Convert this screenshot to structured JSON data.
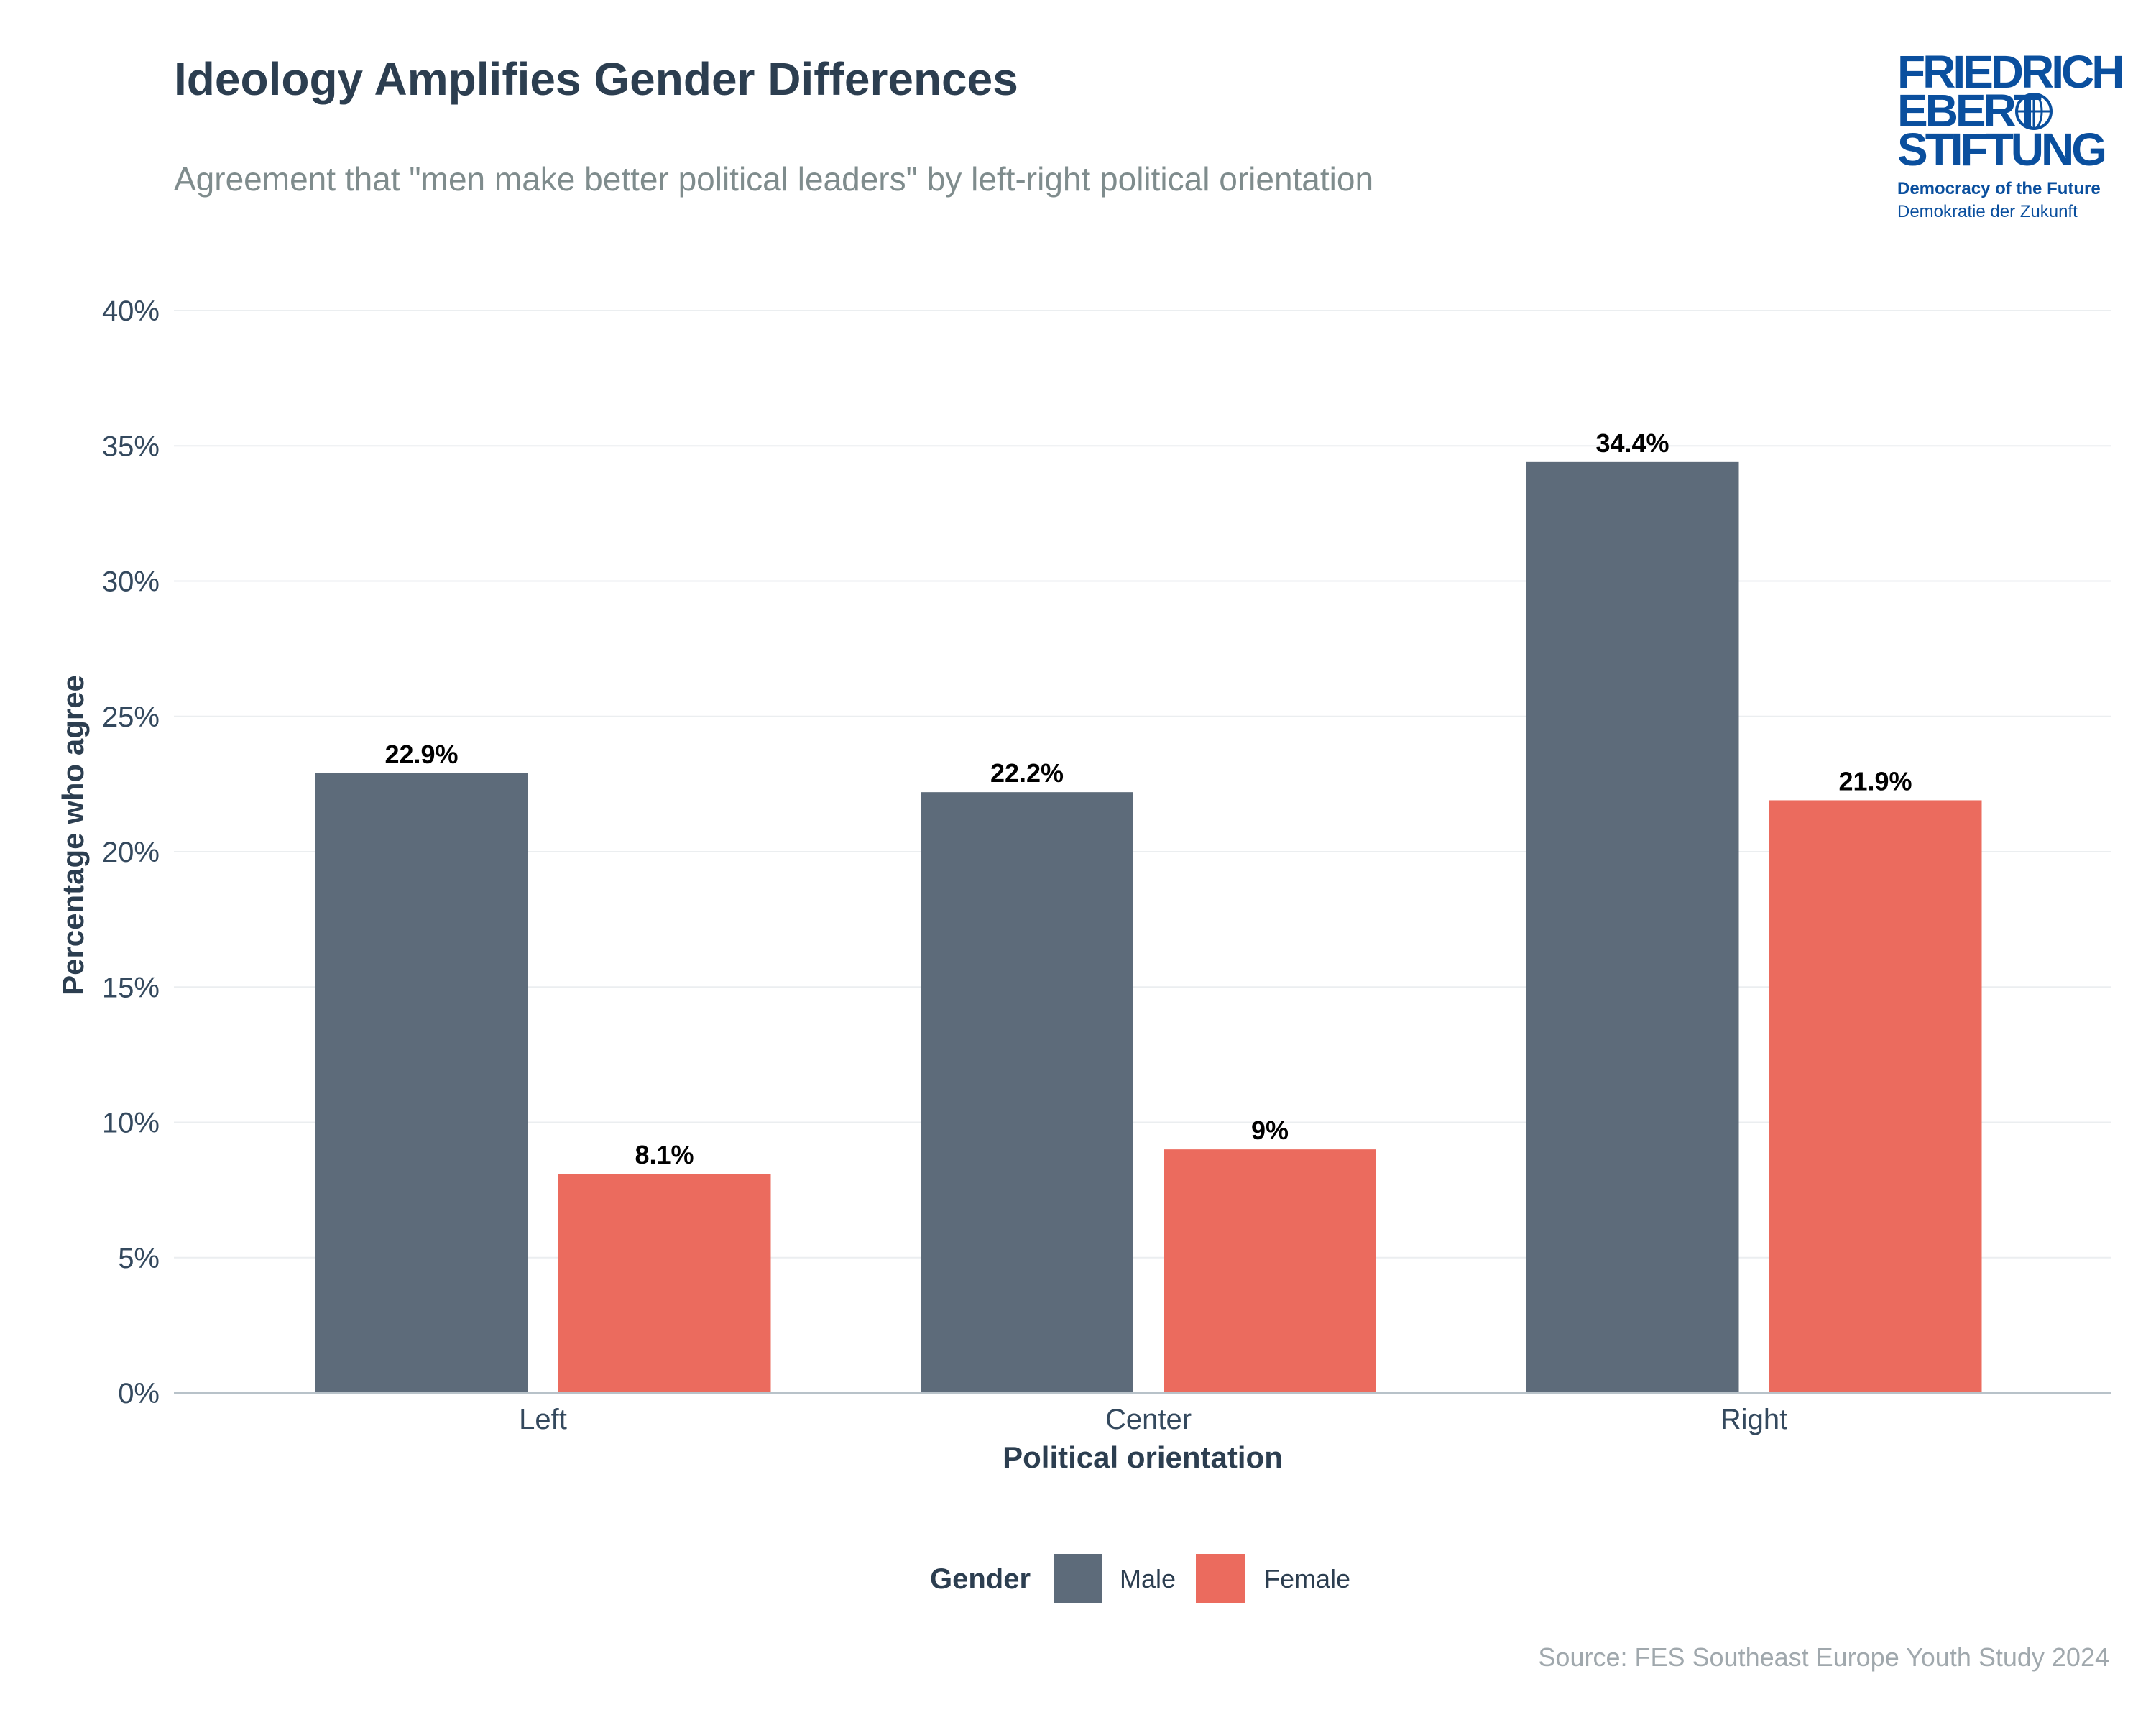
{
  "header": {
    "title": "Ideology Amplifies Gender Differences",
    "subtitle": "Agreement that \"men make better political leaders\" by left-right political orientation"
  },
  "logo": {
    "line1": "FRIEDRICH",
    "line2": "EBERT",
    "line3": "STIFTUNG",
    "tagline1": "Democracy of the Future",
    "tagline2": "Demokratie der Zukunft",
    "color": "#0a4f9e"
  },
  "chart_data": {
    "type": "bar",
    "categories": [
      "Left",
      "Center",
      "Right"
    ],
    "series": [
      {
        "name": "Male",
        "values": [
          22.9,
          22.2,
          34.4
        ],
        "labels": [
          "22.9%",
          "22.2%",
          "34.4%"
        ],
        "color": "#5d6b7a"
      },
      {
        "name": "Female",
        "values": [
          8.1,
          9,
          21.9
        ],
        "labels": [
          "8.1%",
          "9%",
          "21.9%"
        ],
        "color": "#eb6b5e"
      }
    ],
    "xlabel": "Political orientation",
    "ylabel": "Percentage who agree",
    "ylim": [
      0,
      40
    ],
    "yticks": [
      0,
      5,
      10,
      15,
      20,
      25,
      30,
      35,
      40
    ],
    "ytick_labels": [
      "0%",
      "5%",
      "10%",
      "15%",
      "20%",
      "25%",
      "30%",
      "35%",
      "40%"
    ],
    "grid": true,
    "legend": {
      "title": "Gender",
      "position": "bottom"
    }
  },
  "footer": {
    "source": "Source: FES Southeast Europe Youth Study 2024"
  }
}
